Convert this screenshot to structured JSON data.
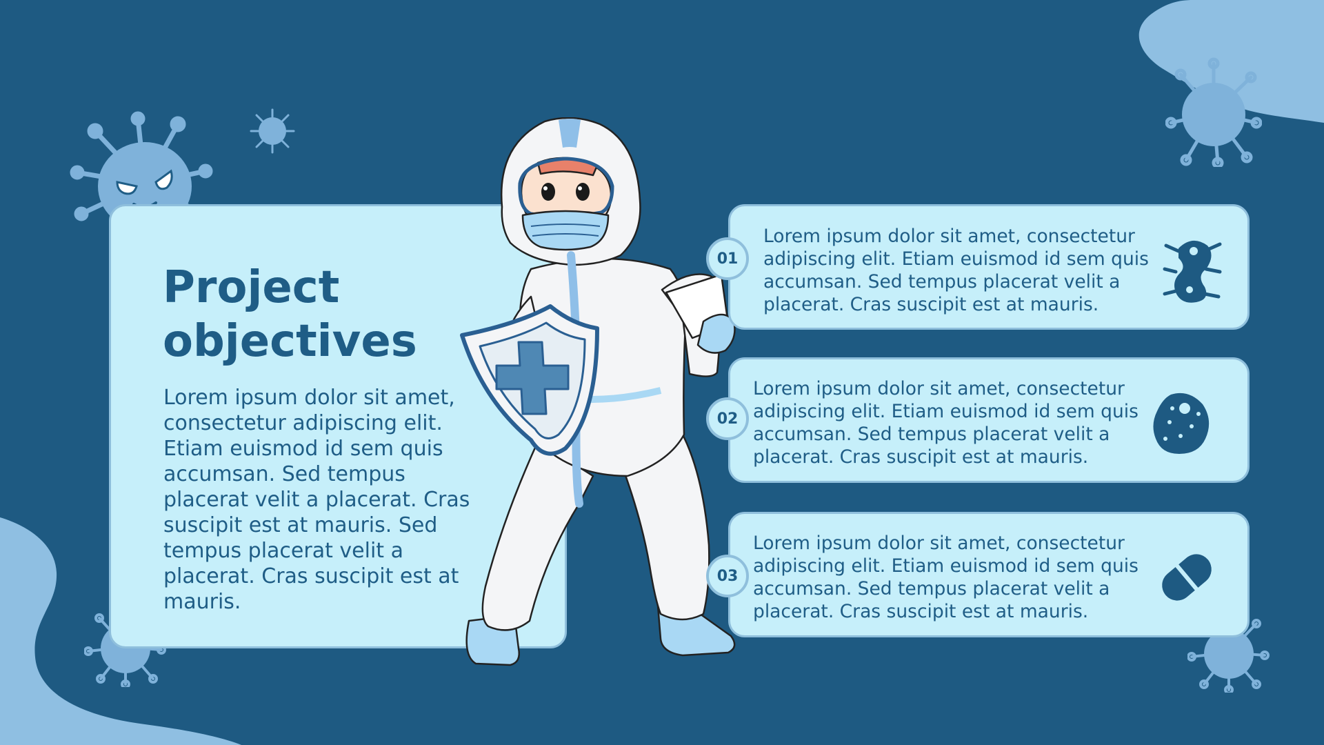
{
  "slide": {
    "title_line1": "Project",
    "title_line2": "objectives",
    "body": "Lorem ipsum dolor sit amet, consectetur adipiscing elit. Etiam euismod id sem quis accumsan. Sed tempus placerat velit a placerat. Cras suscipit est at mauris. Sed tempus placerat velit a placerat. Cras suscipit est at mauris."
  },
  "objectives": [
    {
      "number": "01",
      "text": "Lorem ipsum dolor sit amet, consectetur adipiscing elit. Etiam euismod id sem quis accumsan. Sed tempus placerat velit a placerat. Cras suscipit est at mauris.",
      "icon": "bacteria-icon"
    },
    {
      "number": "02",
      "text": "Lorem ipsum dolor sit amet, consectetur adipiscing elit. Etiam euismod id sem quis accumsan. Sed tempus placerat velit a placerat. Cras suscipit est at mauris.",
      "icon": "germ-icon"
    },
    {
      "number": "03",
      "text": "Lorem ipsum dolor sit amet, consectetur adipiscing elit. Etiam euismod id sem quis accumsan. Sed tempus placerat velit a placerat. Cras suscipit est at mauris.",
      "icon": "pill-icon"
    }
  ],
  "colors": {
    "background": "#1e5a82",
    "card": "#c6effa",
    "card_border": "#8fbfdc",
    "text": "#1f5d86",
    "virus": "#7fb2da"
  }
}
